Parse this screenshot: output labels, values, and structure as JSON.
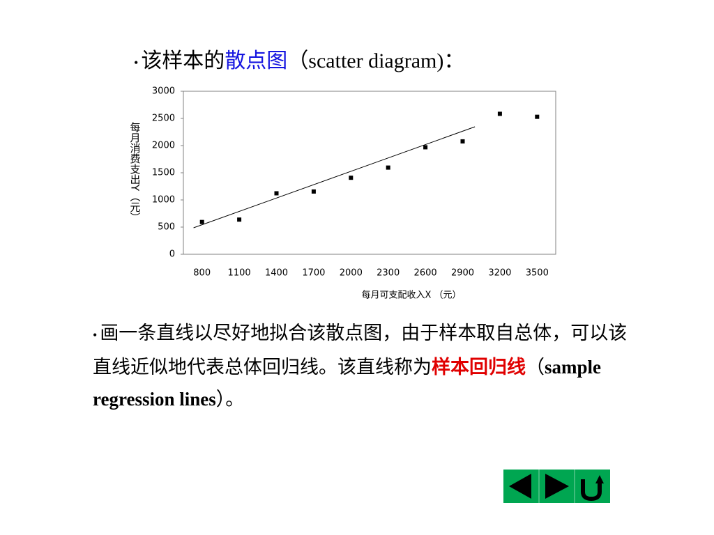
{
  "header": {
    "parts": [
      "该样本的",
      "散点图",
      "（scatter diagram)："
    ]
  },
  "chart_data": {
    "type": "scatter",
    "x_label": "每月可支配收入X （元）",
    "y_label": "每月消费支出Y（元）",
    "x": [
      800,
      1100,
      1400,
      1700,
      2000,
      2300,
      2600,
      2900,
      3200,
      3500
    ],
    "values": [
      594,
      638,
      1122,
      1155,
      1408,
      1595,
      1969,
      2078,
      2585,
      2530
    ],
    "color": "#000000",
    "regression_line": {
      "x": [
        732,
        2999
      ],
      "values": [
        487,
        2346
      ],
      "color": "#000000"
    },
    "xlim": [
      650,
      3650
    ],
    "xticks": [
      800,
      1100,
      1400,
      1700,
      2000,
      2300,
      2600,
      2900,
      3200,
      3500
    ],
    "ylim": [
      0,
      3000
    ],
    "yticks": [
      0,
      500,
      1000,
      1500,
      2000,
      2500,
      3000
    ],
    "grid": false
  },
  "paragraph": {
    "parts": [
      "画一条直线以尽好地拟合该散点图，由于样本取自总体，可以该直线近似地代表总体回归线。该直线称为",
      "样本回归线",
      "（",
      "sample regression lines",
      "）。"
    ]
  }
}
